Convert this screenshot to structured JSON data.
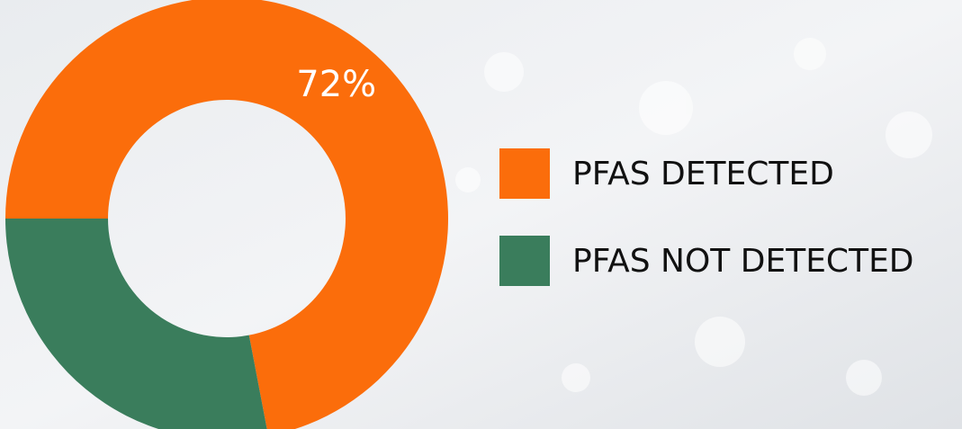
{
  "chart_data": {
    "type": "donut",
    "categories": [
      "PFAS DETECTED",
      "PFAS NOT DETECTED"
    ],
    "values": [
      72,
      28
    ],
    "value_labels": [
      "72%",
      null
    ],
    "colors": [
      "#fb6d0b",
      "#3a7d5c"
    ],
    "legend": "right"
  }
}
